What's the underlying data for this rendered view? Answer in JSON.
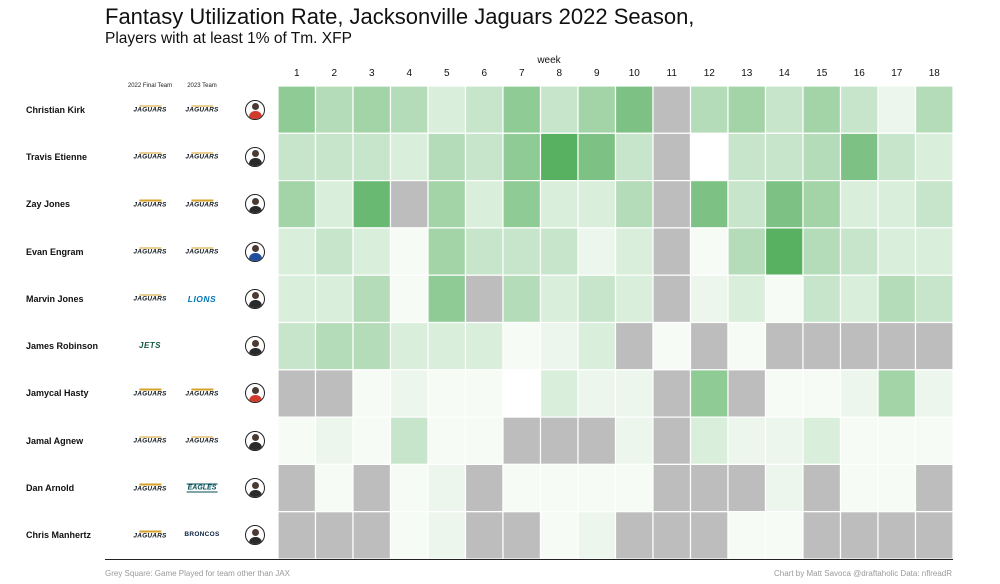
{
  "chart_data": {
    "type": "heatmap",
    "title": "Fantasy Utilization Rate, Jacksonville Jaguars 2022 Season,",
    "subtitle": "Players with at least 1% of Tm. XFP",
    "xlabel": "week",
    "weeks": [
      "1",
      "2",
      "3",
      "4",
      "5",
      "6",
      "7",
      "8",
      "9",
      "10",
      "11",
      "12",
      "13",
      "14",
      "15",
      "16",
      "17",
      "18"
    ],
    "column_headers": [
      "2022 Final Team",
      "2023 Team"
    ],
    "grey_value": "G",
    "intensity_scale": [
      0,
      10
    ],
    "rows": [
      {
        "player": "Christian Kirk",
        "team_2022": "JAGUARS",
        "team_2023": "JAGUARS",
        "jersey": "#d03b2c",
        "values": [
          6,
          4,
          5,
          4,
          2,
          3,
          6,
          3,
          5,
          7,
          "G",
          4,
          5,
          3,
          5,
          3,
          1,
          4
        ]
      },
      {
        "player": "Travis Etienne",
        "team_2022": "JAGUARS",
        "team_2023": "JAGUARS",
        "jersey": "#2a2a2a",
        "values": [
          3,
          3,
          3,
          2,
          4,
          3,
          6,
          9,
          7,
          3,
          "G",
          0,
          3,
          3,
          4,
          7,
          3,
          2
        ]
      },
      {
        "player": "Zay Jones",
        "team_2022": "JAGUARS",
        "team_2023": "JAGUARS",
        "jersey": "#2a2a2a",
        "values": [
          5,
          2,
          8,
          "G",
          5,
          2,
          6,
          2,
          2,
          4,
          "G",
          7,
          3,
          7,
          5,
          2,
          2,
          3
        ]
      },
      {
        "player": "Evan Engram",
        "team_2022": "JAGUARS",
        "team_2023": "JAGUARS",
        "jersey": "#1f4e9c",
        "values": [
          2,
          3,
          2,
          0.5,
          5,
          3,
          3,
          3,
          1,
          2,
          "G",
          0.5,
          4,
          9,
          4,
          3,
          2,
          2
        ]
      },
      {
        "player": "Marvin Jones",
        "team_2022": "JAGUARS",
        "team_2023": "LIONS",
        "jersey": "#2a2a2a",
        "values": [
          2,
          2,
          4,
          0.5,
          6,
          "G",
          4,
          2,
          3,
          2,
          "G",
          1,
          2,
          0.5,
          3,
          2,
          4,
          3
        ]
      },
      {
        "player": "James Robinson",
        "team_2022": "JETS",
        "team_2023": "",
        "jersey": "#2a2a2a",
        "values": [
          3,
          4,
          4,
          2,
          2,
          2,
          0.5,
          1,
          2,
          "G",
          0.5,
          "G",
          0.5,
          "G",
          "G",
          "G",
          "G",
          "G"
        ]
      },
      {
        "player": "Jamycal Hasty",
        "team_2022": "JAGUARS",
        "team_2023": "JAGUARS",
        "jersey": "#d03b2c",
        "values": [
          "G",
          "G",
          0.5,
          1,
          0.5,
          0.5,
          0,
          2,
          1,
          1,
          "G",
          6,
          "G",
          0.5,
          0.5,
          1,
          5,
          1
        ]
      },
      {
        "player": "Jamal Agnew",
        "team_2022": "JAGUARS",
        "team_2023": "JAGUARS",
        "jersey": "#2a2a2a",
        "values": [
          0.5,
          1,
          0.5,
          3,
          0.5,
          0.5,
          "G",
          "G",
          "G",
          1,
          "G",
          2,
          1,
          1,
          2,
          0.5,
          0.5,
          0.5
        ]
      },
      {
        "player": "Dan Arnold",
        "team_2022": "JAGUARS",
        "team_2023": "EAGLES",
        "jersey": "#2a2a2a",
        "values": [
          "G",
          0.5,
          "G",
          0.5,
          1,
          "G",
          0.5,
          0.5,
          0.5,
          0.5,
          "G",
          "G",
          "G",
          1,
          "G",
          0.5,
          0.5,
          "G"
        ]
      },
      {
        "player": "Chris Manhertz",
        "team_2022": "JAGUARS",
        "team_2023": "BRONCOS",
        "jersey": "#2a2a2a",
        "values": [
          "G",
          "G",
          "G",
          0.5,
          1,
          "G",
          "G",
          0.5,
          1,
          "G",
          "G",
          "G",
          0.5,
          0.5,
          "G",
          "G",
          "G",
          "G"
        ]
      }
    ]
  },
  "colors": {
    "grey_cell": "#bdbdbd",
    "low": "#ffffff",
    "high": "#45a84f"
  },
  "footer": {
    "left": "Grey Square: Game Played for team other than JAX",
    "right": "Chart by Matt Savoca   @draftaholic   Data: nflreadR"
  }
}
